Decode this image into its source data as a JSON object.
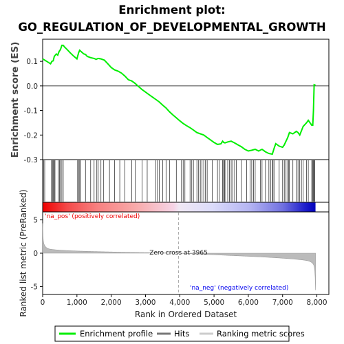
{
  "chart_data": {
    "type": "line",
    "title_line1": "Enrichment plot:",
    "title_line2": "GO_REGULATION_OF_DEVELOPMENTAL_GROWTH",
    "es_panel": {
      "ylabel": "Enrichment score (ES)",
      "ylim": [
        -0.3,
        0.19
      ],
      "yticks": [
        0.1,
        0.0,
        -0.1,
        -0.2,
        -0.3
      ],
      "ytick_labels": [
        "0.1",
        "0.0",
        "-0.1",
        "-0.2",
        "-0.3"
      ],
      "series": [
        {
          "name": "Enrichment profile",
          "color": "#00ee00",
          "x": [
            0,
            60,
            150,
            230,
            270,
            310,
            340,
            400,
            440,
            480,
            520,
            560,
            600,
            640,
            700,
            800,
            900,
            1000,
            1050,
            1080,
            1120,
            1200,
            1250,
            1300,
            1400,
            1500,
            1560,
            1620,
            1700,
            1800,
            1900,
            2000,
            2100,
            2200,
            2300,
            2400,
            2500,
            2600,
            2700,
            2800,
            2900,
            3000,
            3100,
            3200,
            3300,
            3400,
            3500,
            3600,
            3700,
            3800,
            3900,
            4000,
            4100,
            4200,
            4300,
            4400,
            4500,
            4600,
            4700,
            4800,
            4900,
            5000,
            5100,
            5200,
            5250,
            5280,
            5320,
            5400,
            5500,
            5600,
            5700,
            5800,
            5900,
            6000,
            6100,
            6200,
            6300,
            6400,
            6500,
            6600,
            6700,
            6750,
            6800,
            6900,
            7000,
            7050,
            7100,
            7150,
            7200,
            7300,
            7400,
            7450,
            7500,
            7600,
            7700,
            7750,
            7800,
            7850,
            7880,
            7900,
            7920,
            7960
          ],
          "y": [
            0.11,
            0.105,
            0.097,
            0.09,
            0.1,
            0.102,
            0.12,
            0.13,
            0.125,
            0.14,
            0.148,
            0.165,
            0.165,
            0.158,
            0.15,
            0.135,
            0.122,
            0.11,
            0.135,
            0.145,
            0.14,
            0.13,
            0.128,
            0.12,
            0.115,
            0.112,
            0.108,
            0.112,
            0.11,
            0.105,
            0.09,
            0.075,
            0.065,
            0.06,
            0.052,
            0.04,
            0.025,
            0.02,
            0.01,
            -0.003,
            -0.015,
            -0.025,
            -0.035,
            -0.045,
            -0.055,
            -0.065,
            -0.078,
            -0.09,
            -0.105,
            -0.118,
            -0.13,
            -0.142,
            -0.153,
            -0.162,
            -0.17,
            -0.18,
            -0.19,
            -0.195,
            -0.2,
            -0.21,
            -0.22,
            -0.23,
            -0.238,
            -0.236,
            -0.225,
            -0.23,
            -0.232,
            -0.228,
            -0.225,
            -0.232,
            -0.24,
            -0.248,
            -0.258,
            -0.265,
            -0.262,
            -0.258,
            -0.265,
            -0.258,
            -0.268,
            -0.275,
            -0.278,
            -0.255,
            -0.235,
            -0.245,
            -0.25,
            -0.24,
            -0.225,
            -0.21,
            -0.19,
            -0.195,
            -0.185,
            -0.19,
            -0.2,
            -0.165,
            -0.15,
            -0.14,
            -0.15,
            -0.16,
            -0.16,
            -0.1,
            0.005,
            0.003
          ]
        }
      ]
    },
    "hits_panel": {
      "hit_positions": [
        30,
        60,
        250,
        290,
        310,
        340,
        360,
        450,
        490,
        510,
        560,
        600,
        1020,
        1050,
        1080,
        1100,
        1250,
        1400,
        1500,
        1580,
        1620,
        1700,
        1780,
        1950,
        2100,
        2250,
        2400,
        2600,
        2700,
        2900,
        3050,
        3300,
        3350,
        3400,
        3500,
        3600,
        3700,
        3900,
        4050,
        4100,
        4150,
        4300,
        4350,
        4400,
        4500,
        4550,
        4600,
        4650,
        4700,
        4750,
        4800,
        4950,
        5100,
        5150,
        5250,
        5280,
        5300,
        5320,
        5400,
        5450,
        5500,
        5550,
        5600,
        5650,
        5800,
        5950,
        6050,
        6100,
        6150,
        6200,
        6350,
        6400,
        6500,
        6600,
        6650,
        6700,
        6720,
        6750,
        6900,
        7000,
        7050,
        7100,
        7150,
        7180,
        7200,
        7300,
        7400,
        7450,
        7500,
        7550,
        7600,
        7700,
        7750,
        7850,
        7880,
        7900,
        7920,
        7940
      ]
    },
    "metric_panel": {
      "ylabel": "Ranked list metric (PreRanked)",
      "ylim": [
        -6.2,
        6.2
      ],
      "yticks": [
        5,
        0,
        -5
      ],
      "ytick_labels": [
        "5",
        "0",
        "-5"
      ],
      "pos_label": "'na_pos' (positively correlated)",
      "neg_label": "'na_neg' (negatively correlated)",
      "zero_cross_label": "Zero cross at 3965",
      "zero_cross": 3965
    },
    "xaxis": {
      "xlabel": "Rank in Ordered Dataset",
      "xlim": [
        0,
        8350
      ],
      "xticks": [
        0,
        1000,
        2000,
        3000,
        4000,
        5000,
        6000,
        7000,
        8000
      ],
      "xtick_labels": [
        "0",
        "1,000",
        "2,000",
        "3,000",
        "4,000",
        "5,000",
        "6,000",
        "7,000",
        "8,000"
      ],
      "n_genes": 7960
    },
    "legend": {
      "items": [
        {
          "label": "Enrichment profile",
          "color": "#00ee00"
        },
        {
          "label": "Hits",
          "color": "#777777"
        },
        {
          "label": "Ranking metric scores",
          "color": "#cccccc"
        }
      ],
      "placement": "bottom"
    },
    "colors": {
      "pos_label": "#ee0000",
      "neg_label": "#0000ee",
      "bar_red": "#ee0000",
      "bar_blue": "#0000cc"
    }
  }
}
